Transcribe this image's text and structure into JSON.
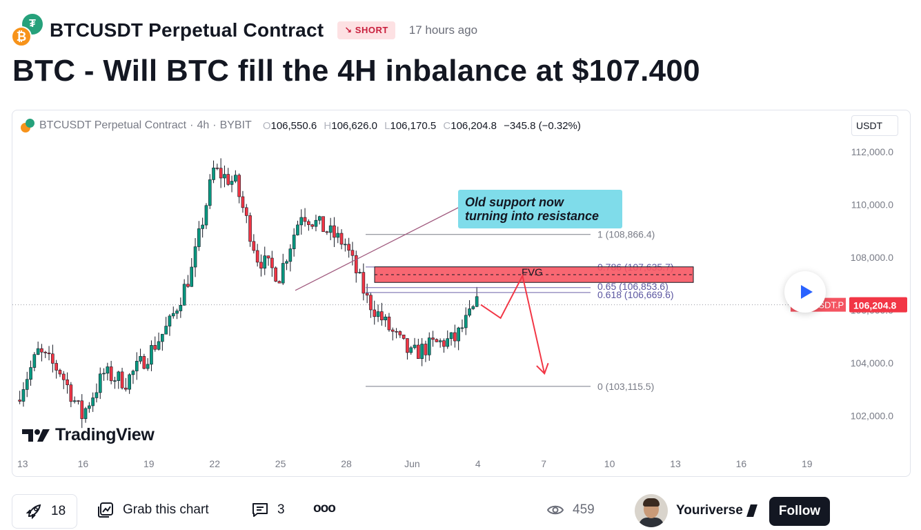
{
  "header": {
    "symbol": "BTCUSDT Perpetual Contract",
    "badge": "SHORT",
    "badge_icon": "arrow-down-right-icon",
    "time_ago": "17 hours ago",
    "base_coin_glyph": "₿",
    "quote_coin_glyph": "₮"
  },
  "idea_title": "BTC - Will BTC fill the 4H inbalance at $107.400",
  "chart": {
    "legend": {
      "symbol": "BTCUSDT Perpetual Contract",
      "interval": "4h",
      "exchange": "BYBIT",
      "separator": "·",
      "o_key": "O",
      "o": "106,550.6",
      "h_key": "H",
      "h": "106,626.0",
      "l_key": "L",
      "l": "106,170.5",
      "c_key": "C",
      "c": "106,204.8",
      "change": "−345.8 (−0.32%)"
    },
    "currency": "USDT",
    "last_price_label": "BTCUSDT.P",
    "last_price": "106,204.8",
    "callout": [
      "Old support now",
      "turning into resistance"
    ],
    "fvg_label": "FVG",
    "fib_levels": [
      {
        "label": "1 (108,866.4)",
        "price": 108866.4
      },
      {
        "label": "0.786 (107,635.7)",
        "price": 107635.7
      },
      {
        "label": "0.65 (106,853.6)",
        "price": 106853.6
      },
      {
        "label": "0.618 (106,669.6)",
        "price": 106669.6
      },
      {
        "label": "0 (103,115.5)",
        "price": 103115.5
      }
    ],
    "watermark": "TradingView",
    "colors": {
      "up": "#089981",
      "down": "#f23645",
      "callout": "#7fdcea",
      "fvg": "#f7525f",
      "fib": "#787b86"
    }
  },
  "chart_data": {
    "type": "candlestick",
    "title": "BTCUSDT Perpetual Contract · 4h · BYBIT",
    "y_ticks": [
      "112,000.0",
      "110,000.0",
      "108,000.0",
      "106,000.0",
      "104,000.0",
      "102,000.0"
    ],
    "y_tick_values": [
      112000,
      110000,
      108000,
      106000,
      104000,
      102000
    ],
    "x_ticks": [
      "13",
      "16",
      "19",
      "22",
      "25",
      "28",
      "Jun",
      "4",
      "7",
      "10",
      "13",
      "16",
      "19"
    ],
    "ylim": [
      100500,
      113300
    ],
    "last_close": 106204.8,
    "price_path": [
      {
        "date": "May 13",
        "price": 102600
      },
      {
        "date": "May 14",
        "price": 104400
      },
      {
        "date": "May 15",
        "price": 103700
      },
      {
        "date": "May 16",
        "price": 102000
      },
      {
        "date": "May 17",
        "price": 103600
      },
      {
        "date": "May 18",
        "price": 103300
      },
      {
        "date": "May 19",
        "price": 104300
      },
      {
        "date": "May 20",
        "price": 105500
      },
      {
        "date": "May 21",
        "price": 107500
      },
      {
        "date": "May 22",
        "price": 111300
      },
      {
        "date": "May 23",
        "price": 110800
      },
      {
        "date": "May 24",
        "price": 108000
      },
      {
        "date": "May 25",
        "price": 107300
      },
      {
        "date": "May 26",
        "price": 109700
      },
      {
        "date": "May 27",
        "price": 109100
      },
      {
        "date": "May 28",
        "price": 108500
      },
      {
        "date": "May 29",
        "price": 106400
      },
      {
        "date": "May 30",
        "price": 105300
      },
      {
        "date": "May 31",
        "price": 104300
      },
      {
        "date": "Jun 1",
        "price": 104700
      },
      {
        "date": "Jun 2",
        "price": 104900
      },
      {
        "date": "Jun 3",
        "price": 106200
      }
    ],
    "projection": [
      {
        "date": "Jun 4",
        "price": 105700
      },
      {
        "date": "Jun 5",
        "price": 107300
      },
      {
        "date": "Jun 6",
        "price": 103600
      }
    ]
  },
  "footer": {
    "boosts": "18",
    "grab_chart": "Grab this chart",
    "comments": "3",
    "more": "ooo",
    "views": "459",
    "author": "Youriverse",
    "follow": "Follow"
  }
}
